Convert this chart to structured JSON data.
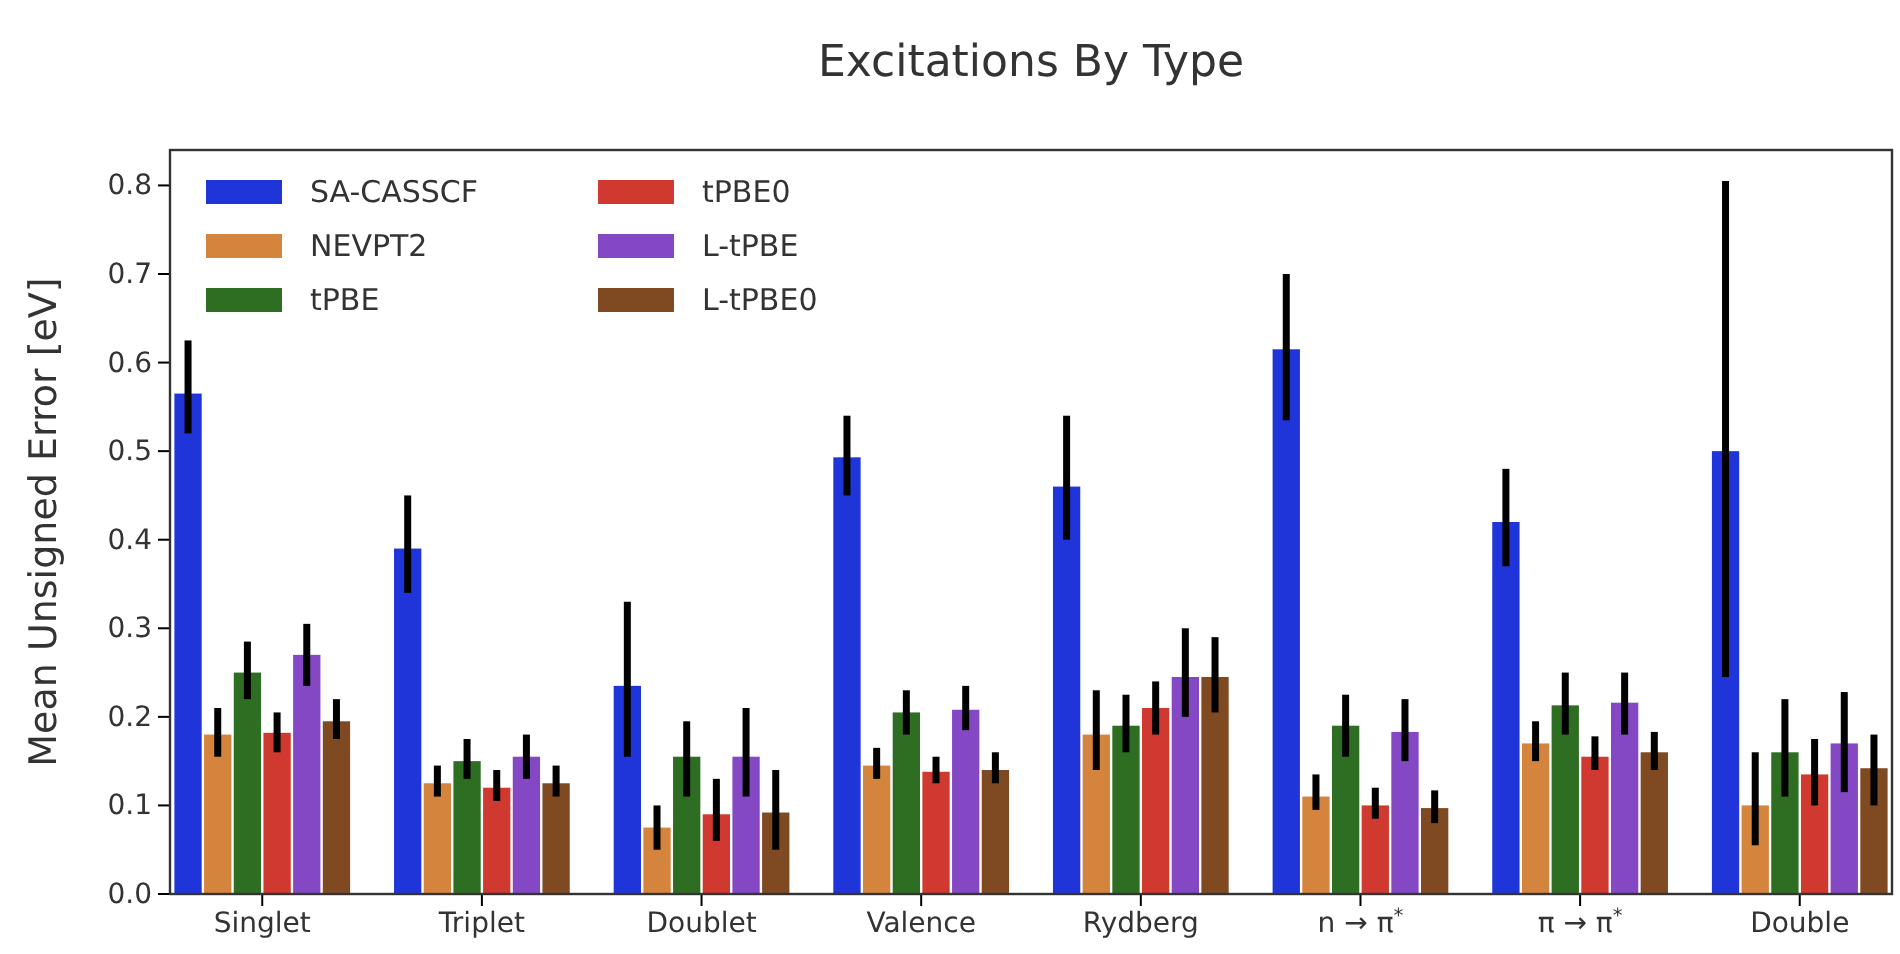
{
  "chart_data": {
    "type": "bar",
    "title": "Excitations By Type",
    "ylabel": "Mean Unsigned Error [eV]",
    "categories": [
      "Singlet",
      "Triplet",
      "Doublet",
      "Valence",
      "Rydberg",
      "n → π$^{*}$",
      "π → π$^{*}$",
      "Double"
    ],
    "series": [
      {
        "name": "SA-CASSCF",
        "color": "#1f35d9",
        "values": [
          0.565,
          0.39,
          0.235,
          0.493,
          0.46,
          0.615,
          0.42,
          0.5
        ],
        "errors": [
          [
            0.52,
            0.625
          ],
          [
            0.34,
            0.45
          ],
          [
            0.155,
            0.33
          ],
          [
            0.45,
            0.54
          ],
          [
            0.4,
            0.54
          ],
          [
            0.535,
            0.7
          ],
          [
            0.37,
            0.48
          ],
          [
            0.245,
            0.805
          ]
        ]
      },
      {
        "name": "NEVPT2",
        "color": "#d4843c",
        "values": [
          0.18,
          0.125,
          0.075,
          0.145,
          0.18,
          0.11,
          0.17,
          0.1
        ],
        "errors": [
          [
            0.155,
            0.21
          ],
          [
            0.11,
            0.145
          ],
          [
            0.05,
            0.1
          ],
          [
            0.13,
            0.165
          ],
          [
            0.14,
            0.23
          ],
          [
            0.095,
            0.135
          ],
          [
            0.15,
            0.195
          ],
          [
            0.055,
            0.16
          ]
        ]
      },
      {
        "name": "tPBE",
        "color": "#2e6e23",
        "values": [
          0.25,
          0.15,
          0.155,
          0.205,
          0.19,
          0.19,
          0.213,
          0.16
        ],
        "errors": [
          [
            0.22,
            0.285
          ],
          [
            0.13,
            0.175
          ],
          [
            0.11,
            0.195
          ],
          [
            0.18,
            0.23
          ],
          [
            0.16,
            0.225
          ],
          [
            0.155,
            0.225
          ],
          [
            0.18,
            0.25
          ],
          [
            0.11,
            0.22
          ]
        ]
      },
      {
        "name": "tPBE0",
        "color": "#d0392f",
        "values": [
          0.182,
          0.12,
          0.09,
          0.138,
          0.21,
          0.1,
          0.155,
          0.135
        ],
        "errors": [
          [
            0.16,
            0.205
          ],
          [
            0.105,
            0.14
          ],
          [
            0.06,
            0.13
          ],
          [
            0.125,
            0.155
          ],
          [
            0.18,
            0.24
          ],
          [
            0.085,
            0.12
          ],
          [
            0.14,
            0.178
          ],
          [
            0.1,
            0.175
          ]
        ]
      },
      {
        "name": "L-tPBE",
        "color": "#8448c4",
        "values": [
          0.27,
          0.155,
          0.155,
          0.208,
          0.245,
          0.183,
          0.216,
          0.17
        ],
        "errors": [
          [
            0.235,
            0.305
          ],
          [
            0.13,
            0.18
          ],
          [
            0.11,
            0.21
          ],
          [
            0.185,
            0.235
          ],
          [
            0.2,
            0.3
          ],
          [
            0.15,
            0.22
          ],
          [
            0.18,
            0.25
          ],
          [
            0.115,
            0.228
          ]
        ]
      },
      {
        "name": "L-tPBE0",
        "color": "#7f4a22",
        "values": [
          0.195,
          0.125,
          0.092,
          0.14,
          0.245,
          0.097,
          0.16,
          0.142
        ],
        "errors": [
          [
            0.175,
            0.22
          ],
          [
            0.11,
            0.145
          ],
          [
            0.05,
            0.14
          ],
          [
            0.125,
            0.16
          ],
          [
            0.205,
            0.29
          ],
          [
            0.08,
            0.117
          ],
          [
            0.14,
            0.183
          ],
          [
            0.1,
            0.18
          ]
        ]
      }
    ],
    "ylim": [
      0,
      0.84
    ],
    "yticks": [
      {
        "value": 0,
        "label": "0.0"
      },
      {
        "value": 0.1,
        "label": "0.1"
      },
      {
        "value": 0.2,
        "label": "0.2"
      },
      {
        "value": 0.3,
        "label": "0.3"
      },
      {
        "value": 0.4,
        "label": "0.4"
      },
      {
        "value": 0.5,
        "label": "0.5"
      },
      {
        "value": 0.6,
        "label": "0.6"
      },
      {
        "value": 0.7,
        "label": "0.7"
      },
      {
        "value": 0.8,
        "label": "0.8"
      }
    ],
    "legend": "top left",
    "grid": false
  }
}
